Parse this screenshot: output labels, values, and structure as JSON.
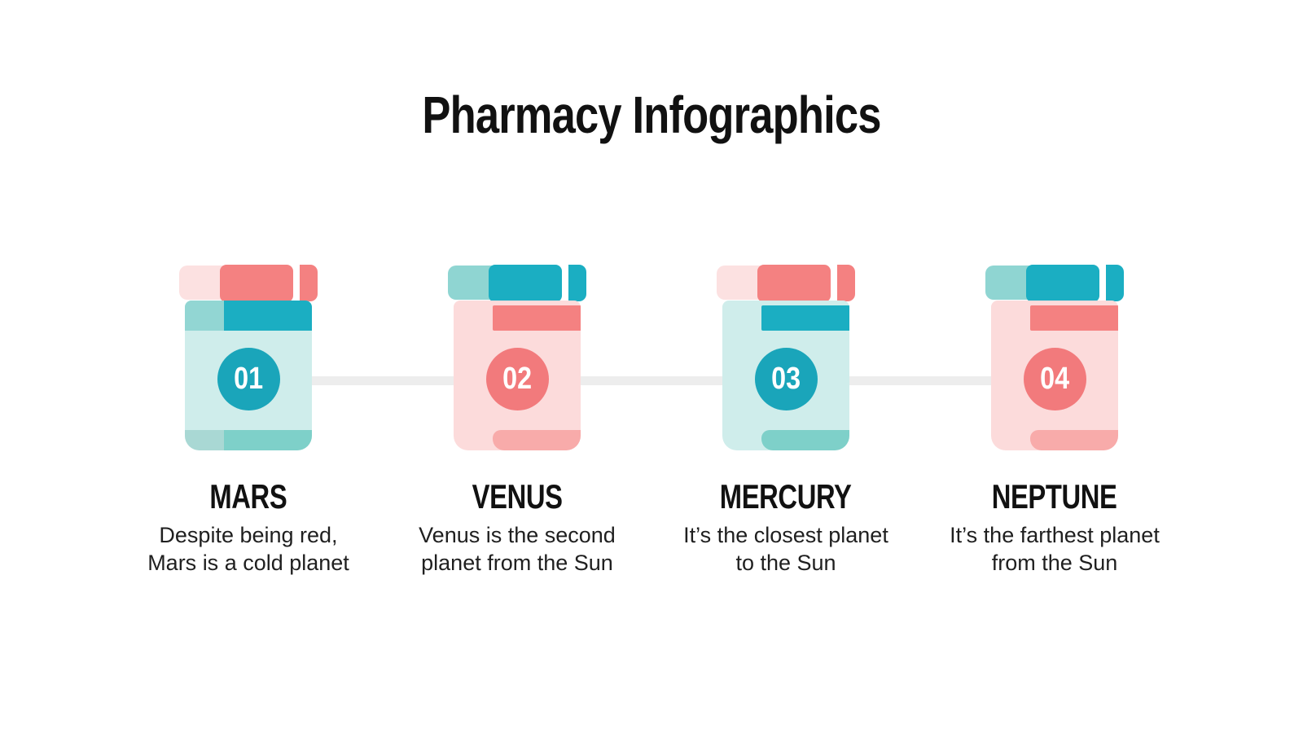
{
  "title": "Pharmacy Infographics",
  "colors": {
    "coral": "#f48181",
    "coral_circle": "#f27a7c",
    "pink_cap_light": "#fce1e1",
    "pink_body": "#fcdbdb",
    "pink_bottom_band": "#f8abaa",
    "teal_dark": "#1baec2",
    "teal_circle": "#1aa5ba",
    "teal_cap_light": "#8fd5d2",
    "mint_body": "#cfedeb",
    "mint_bottom_band_left": "#a9d8d4",
    "teal_bottom_band": "#7ed0c9",
    "connector_line": "#ededed",
    "text": "#111111"
  },
  "steps": [
    {
      "number": "01",
      "planet": "MARS",
      "description": "Despite being red,\nMars is a cold planet"
    },
    {
      "number": "02",
      "planet": "VENUS",
      "description": "Venus is the second\nplanet from the Sun"
    },
    {
      "number": "03",
      "planet": "MERCURY",
      "description": "It’s the closest planet\nto the Sun"
    },
    {
      "number": "04",
      "planet": "NEPTUNE",
      "description": "It’s the farthest planet\nfrom the Sun"
    }
  ]
}
